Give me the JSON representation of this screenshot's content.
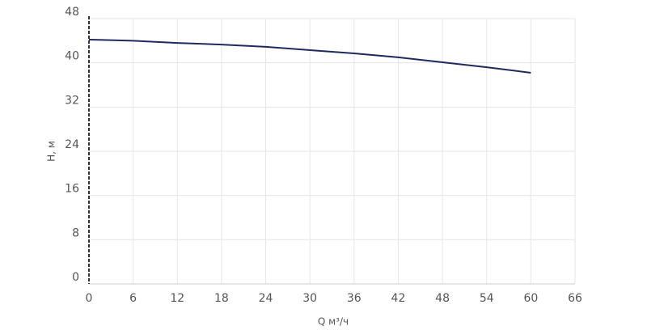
{
  "chart_data": {
    "type": "line",
    "x_label": "Q м³/ч",
    "y_label": "H, м",
    "x": [
      0,
      6,
      12,
      18,
      24,
      30,
      36,
      42,
      48,
      54,
      60
    ],
    "series": [
      {
        "color": "#1f2a5c",
        "values": [
          44.2,
          44.0,
          43.6,
          43.3,
          42.9,
          42.3,
          41.7,
          41.0,
          40.1,
          39.2,
          38.2
        ]
      }
    ],
    "xlim": [
      0,
      66
    ],
    "xticks": [
      0,
      6,
      12,
      18,
      24,
      30,
      36,
      42,
      48,
      54,
      60,
      66
    ],
    "ylim": [
      0,
      48
    ],
    "yticks": [
      0,
      8,
      16,
      24,
      32,
      40,
      48
    ],
    "grid": true
  }
}
